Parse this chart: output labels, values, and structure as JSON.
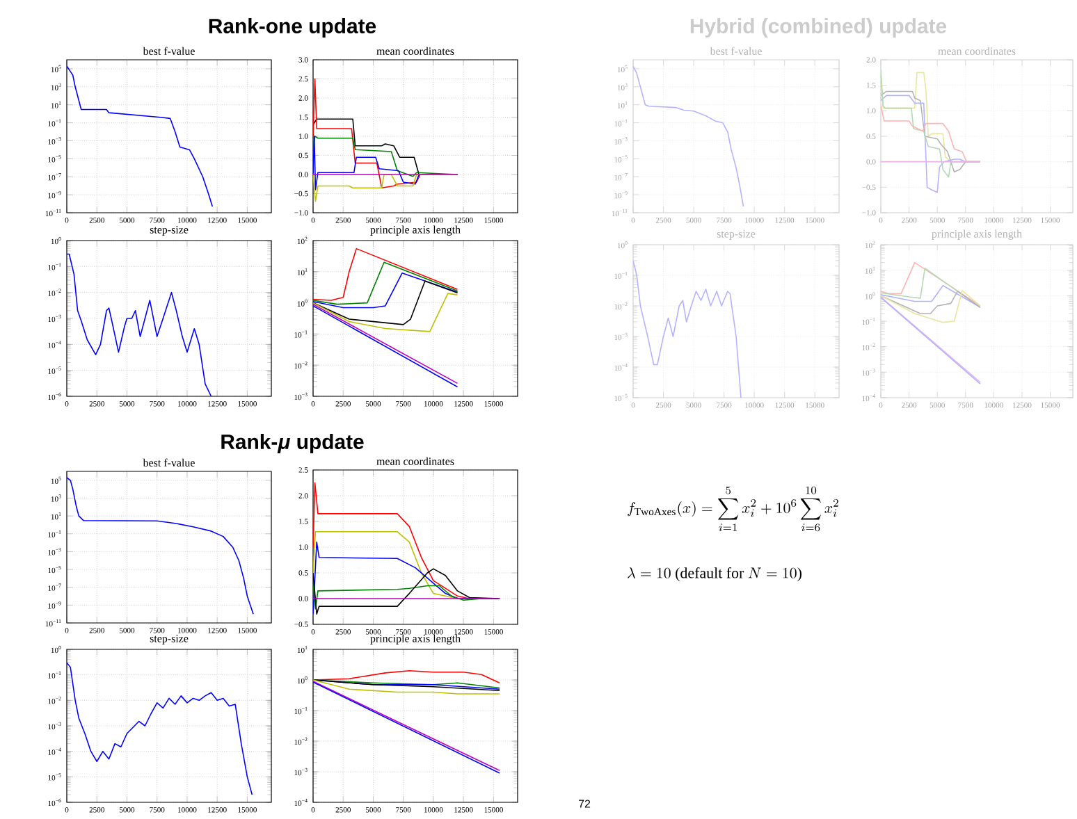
{
  "chart_data": [
    {
      "type": "other",
      "title": "Rank-one update"
    },
    {
      "type": "line",
      "title": "best f-value",
      "xlim": [
        0,
        17000
      ],
      "xticks": [
        0,
        2500,
        5000,
        7500,
        10000,
        12500,
        15000
      ],
      "ylim": [
        1e-11,
        1000000.0
      ],
      "log": "y",
      "grid": true,
      "yticks": [
        {
          "value": 1e-11,
          "label": "10$^{−11}$"
        },
        {
          "value": 1e-09,
          "label": "10$^{−9}$"
        },
        {
          "value": 1e-07,
          "label": "10$^{−7}$"
        },
        {
          "value": 1e-05,
          "label": "10$^{−5}$"
        },
        {
          "value": 0.001,
          "label": "10$^{−3}$"
        },
        {
          "value": 0.1,
          "label": "10$^{−1}$"
        },
        {
          "value": 10,
          "label": "10$^{1}$"
        },
        {
          "value": 1000,
          "label": "10$^{3}$"
        },
        {
          "value": 100000,
          "label": "10$^{5}$"
        }
      ],
      "series": [
        {
          "color": "#0000ff",
          "x": [
            0,
            300,
            500,
            700,
            1000,
            1200,
            3300,
            3500,
            7800,
            8600,
            9000,
            9400,
            10200,
            10600,
            11300,
            11800,
            12100
          ],
          "values": [
            200000.0,
            50000.0,
            20000.0,
            1000.0,
            30,
            3,
            3,
            1.3,
            0.4,
            0.3,
            0.01,
            0.0002,
            0.0001,
            1e-05,
            1e-07,
            1e-09,
            5e-11
          ]
        }
      ]
    },
    {
      "type": "line",
      "title": "mean coordinates",
      "xlim": [
        0,
        17000
      ],
      "xticks": [
        0,
        2500,
        5000,
        7500,
        10000,
        12500,
        15000
      ],
      "ylim": [
        -1,
        3
      ],
      "grid": true,
      "yticks": [
        {
          "value": -1,
          "label": "−1.0"
        },
        {
          "value": -0.5,
          "label": "−0.5"
        },
        {
          "value": 0,
          "label": "0.0"
        },
        {
          "value": 0.5,
          "label": "0.5"
        },
        {
          "value": 1,
          "label": "1.0"
        },
        {
          "value": 1.5,
          "label": "1.5"
        },
        {
          "value": 2,
          "label": "2.0"
        },
        {
          "value": 2.5,
          "label": "2.5"
        },
        {
          "value": 3,
          "label": "3.0"
        }
      ],
      "series": [
        {
          "color": "#000000",
          "x": [
            0,
            300,
            3300,
            3500,
            5700,
            6000,
            6700,
            7200,
            8400,
            8800,
            12000
          ],
          "values": [
            1.3,
            1.45,
            1.45,
            0.75,
            0.75,
            0.8,
            0.75,
            0.45,
            0.45,
            0,
            0
          ]
        },
        {
          "color": "#ff0000",
          "x": [
            0,
            150,
            300,
            3200,
            3500,
            5300,
            5700,
            6700,
            7000,
            8600,
            8900,
            12000
          ],
          "values": [
            1.0,
            2.5,
            1.2,
            1.2,
            0.3,
            0.3,
            -0.35,
            -0.3,
            -0.25,
            -0.2,
            0,
            0
          ]
        },
        {
          "color": "#008000",
          "x": [
            0,
            150,
            400,
            3300,
            3500,
            6500,
            7000,
            8300,
            8600,
            12000
          ],
          "values": [
            0.7,
            1.0,
            0.95,
            0.95,
            0.65,
            0.6,
            0.1,
            -0.05,
            0.05,
            0
          ]
        },
        {
          "color": "#0000ff",
          "x": [
            0,
            100,
            200,
            400,
            3400,
            3600,
            5200,
            5500,
            7100,
            7500,
            8500,
            8800,
            12000
          ],
          "values": [
            0,
            1.0,
            -0.4,
            0.05,
            0.05,
            0.45,
            0.45,
            0.15,
            0.1,
            -0.2,
            -0.25,
            0,
            0
          ]
        },
        {
          "color": "#bfbf00",
          "x": [
            0,
            200,
            400,
            3000,
            3300,
            5700,
            5900,
            6500,
            7000,
            8300,
            8600,
            12000
          ],
          "values": [
            0,
            -0.7,
            -0.3,
            -0.3,
            -0.35,
            -0.35,
            0,
            0,
            -0.3,
            -0.3,
            0,
            0
          ]
        },
        {
          "color": "#bf00bf",
          "x": [
            0,
            12000
          ],
          "values": [
            0,
            0
          ]
        }
      ]
    },
    {
      "type": "line",
      "title": "step-size",
      "xlim": [
        0,
        17000
      ],
      "xticks": [
        0,
        2500,
        5000,
        7500,
        10000,
        12500,
        15000
      ],
      "ylim": [
        1e-06,
        1
      ],
      "log": "y",
      "grid": true,
      "yticks": [
        {
          "value": 1e-06,
          "label": "10$^{−6}$"
        },
        {
          "value": 1e-05,
          "label": "10$^{−5}$"
        },
        {
          "value": 0.0001,
          "label": "10$^{−4}$"
        },
        {
          "value": 0.001,
          "label": "10$^{−3}$"
        },
        {
          "value": 0.01,
          "label": "10$^{−2}$"
        },
        {
          "value": 0.1,
          "label": "10$^{−1}$"
        },
        {
          "value": 1,
          "label": "10$^{0}$"
        }
      ],
      "series": [
        {
          "color": "#0000ff",
          "x": [
            0,
            200,
            600,
            900,
            1200,
            1700,
            2400,
            2800,
            3300,
            3500,
            3800,
            4300,
            4800,
            5000,
            5400,
            5700,
            6100,
            6500,
            6900,
            7500,
            8000,
            8700,
            9100,
            9600,
            10000,
            10600,
            11000,
            11500,
            12000
          ],
          "values": [
            0.3,
            0.3,
            0.05,
            0.002,
            0.0008,
            0.00015,
            4e-05,
            0.0001,
            0.002,
            0.0025,
            0.0006,
            5e-05,
            0.0005,
            0.001,
            0.001,
            0.002,
            0.0002,
            0.001,
            0.005,
            0.0002,
            0.001,
            0.01,
            0.002,
            0.0002,
            5e-05,
            0.0004,
            0.0001,
            3e-06,
            1e-06
          ]
        }
      ]
    },
    {
      "type": "line",
      "title": "principle axis length",
      "xlim": [
        0,
        17000
      ],
      "xticks": [
        0,
        2500,
        5000,
        7500,
        10000,
        12500,
        15000
      ],
      "ylim": [
        0.001,
        100
      ],
      "log": "y",
      "grid": true,
      "yticks": [
        {
          "value": 0.001,
          "label": "10$^{−3}$"
        },
        {
          "value": 0.01,
          "label": "10$^{−2}$"
        },
        {
          "value": 0.1,
          "label": "10$^{−1}$"
        },
        {
          "value": 1,
          "label": "10$^{0}$"
        },
        {
          "value": 10,
          "label": "10$^{1}$"
        },
        {
          "value": 100,
          "label": "10$^{2}$"
        }
      ],
      "series": [
        {
          "color": "#ff0000",
          "x": [
            0,
            1500,
            2500,
            3000,
            3600,
            12000
          ],
          "values": [
            1.3,
            1.2,
            1.5,
            10,
            55,
            2.7
          ]
        },
        {
          "color": "#008000",
          "x": [
            0,
            2000,
            4500,
            5900,
            12000
          ],
          "values": [
            1.2,
            0.9,
            1.0,
            20,
            2.4
          ]
        },
        {
          "color": "#0000ff",
          "x": [
            0,
            2500,
            5000,
            6000,
            7400,
            12000
          ],
          "values": [
            1.1,
            0.7,
            0.7,
            0.8,
            9,
            2.2
          ]
        },
        {
          "color": "#000000",
          "x": [
            0,
            3000,
            7500,
            8100,
            9300,
            12000
          ],
          "values": [
            1,
            0.3,
            0.2,
            0.3,
            5,
            2.1
          ]
        },
        {
          "color": "#bfbf00",
          "x": [
            0,
            3000,
            6000,
            9700,
            11200,
            12000
          ],
          "values": [
            1,
            0.25,
            0.15,
            0.12,
            2,
            1.8
          ]
        },
        {
          "color": "#bf00bf",
          "x": [
            0,
            12000
          ],
          "values": [
            0.9,
            0.0026
          ]
        },
        {
          "color": "#0000ff",
          "x": [
            0,
            12000
          ],
          "values": [
            0.8,
            0.002
          ]
        }
      ]
    },
    {
      "type": "other",
      "title": "Hybrid (combined) update"
    },
    {
      "type": "line",
      "title": "best f-value",
      "xlim": [
        0,
        17000
      ],
      "xticks": [
        0,
        2500,
        5000,
        7500,
        10000,
        12500,
        15000
      ],
      "ylim": [
        1e-11,
        1000000.0
      ],
      "log": "y",
      "grid": true,
      "yticks": [
        {
          "value": 1e-11,
          "label": "10$^{−11}$"
        },
        {
          "value": 1e-09,
          "label": "10$^{−9}$"
        },
        {
          "value": 1e-07,
          "label": "10$^{−7}$"
        },
        {
          "value": 1e-05,
          "label": "10$^{−5}$"
        },
        {
          "value": 0.001,
          "label": "10$^{−3}$"
        },
        {
          "value": 0.1,
          "label": "10$^{−1}$"
        },
        {
          "value": 10,
          "label": "10$^{1}$"
        },
        {
          "value": 1000,
          "label": "10$^{3}$"
        },
        {
          "value": 100000,
          "label": "10$^{5}$"
        }
      ],
      "series": [
        {
          "color": "#b3b3ff",
          "x": [
            0,
            300,
            700,
            1000,
            1300,
            3500,
            4200,
            5000,
            6000,
            6800,
            7400,
            7800,
            8100,
            8500,
            8800,
            9100
          ],
          "values": [
            200000.0,
            30000.0,
            300,
            10,
            7,
            5,
            2.5,
            2,
            0.6,
            0.15,
            0.1,
            0.01,
            0.0001,
            1e-06,
            1e-08,
            5e-11
          ]
        }
      ]
    },
    {
      "type": "line",
      "title": "mean coordinates",
      "xlim": [
        0,
        17000
      ],
      "xticks": [
        0,
        2500,
        5000,
        7500,
        10000,
        12500,
        15000
      ],
      "ylim": [
        -1,
        2
      ],
      "grid": true,
      "yticks": [
        {
          "value": -1,
          "label": "−1.0"
        },
        {
          "value": -0.5,
          "label": "−0.5"
        },
        {
          "value": 0,
          "label": "0.0"
        },
        {
          "value": 0.5,
          "label": "0.5"
        },
        {
          "value": 1,
          "label": "1.0"
        },
        {
          "value": 1.5,
          "label": "1.5"
        },
        {
          "value": 2,
          "label": "2.0"
        }
      ],
      "series": [
        {
          "color": "#e6e6a0",
          "x": [
            0,
            200,
            3000,
            3200,
            3800,
            4000,
            4200,
            4500,
            5500,
            5700,
            6200,
            8800
          ],
          "values": [
            1.7,
            1.05,
            1.05,
            1.75,
            1.75,
            1.4,
            0.5,
            0.55,
            0.55,
            0.1,
            0,
            0
          ]
        },
        {
          "color": "#b3b3b3",
          "x": [
            0,
            500,
            2800,
            3000,
            3500,
            3900,
            5000,
            5300,
            5900,
            6500,
            7000,
            7500,
            8800
          ],
          "values": [
            1.3,
            1.38,
            1.38,
            1.25,
            1.2,
            0.5,
            0.45,
            0.35,
            0.2,
            -0.2,
            -0.15,
            0,
            0
          ]
        },
        {
          "color": "#b3b3ff",
          "x": [
            0,
            500,
            2500,
            3000,
            3800,
            4100,
            4500,
            5000,
            5200,
            5600,
            6500,
            7000,
            7500,
            8800
          ],
          "values": [
            1.2,
            1.3,
            1.3,
            1.15,
            1.15,
            -0.5,
            -0.55,
            -0.6,
            -0.1,
            0,
            0.05,
            0.05,
            0,
            0
          ]
        },
        {
          "color": "#b3d9b3",
          "x": [
            0,
            200,
            400,
            2700,
            2900,
            3800,
            4200,
            5200,
            5500,
            6000,
            6200,
            8800
          ],
          "values": [
            1.8,
            1.1,
            1.05,
            1.05,
            0.65,
            0.6,
            0.3,
            0.25,
            -0.15,
            -0.3,
            0,
            0
          ]
        },
        {
          "color": "#ffb3b3",
          "x": [
            0,
            300,
            2500,
            2800,
            3700,
            4000,
            5500,
            6000,
            6500,
            7200,
            7600,
            8800
          ],
          "values": [
            1.1,
            0.8,
            0.8,
            0.7,
            0.6,
            0.75,
            0.75,
            0.6,
            0.25,
            0.2,
            0,
            0
          ]
        },
        {
          "color": "#e6b3e6",
          "x": [
            0,
            8800
          ],
          "values": [
            0,
            0
          ]
        }
      ]
    },
    {
      "type": "line",
      "title": "step-size",
      "xlim": [
        0,
        17000
      ],
      "xticks": [
        0,
        2500,
        5000,
        7500,
        10000,
        12500,
        15000
      ],
      "ylim": [
        1e-05,
        1
      ],
      "log": "y",
      "grid": true,
      "yticks": [
        {
          "value": 1e-05,
          "label": "10$^{−5}$"
        },
        {
          "value": 0.0001,
          "label": "10$^{−4}$"
        },
        {
          "value": 0.001,
          "label": "10$^{−3}$"
        },
        {
          "value": 0.01,
          "label": "10$^{−2}$"
        },
        {
          "value": 0.1,
          "label": "10$^{−1}$"
        },
        {
          "value": 1,
          "label": "10$^{0}$"
        }
      ],
      "series": [
        {
          "color": "#b3b3ff",
          "x": [
            0,
            300,
            600,
            1200,
            1700,
            2000,
            2500,
            2900,
            3300,
            3800,
            4100,
            4400,
            4800,
            5200,
            5600,
            6000,
            6400,
            6900,
            7300,
            7800,
            8000,
            8500,
            8900
          ],
          "values": [
            0.3,
            0.1,
            0.01,
            0.001,
            0.00012,
            0.00012,
            0.001,
            0.004,
            0.001,
            0.01,
            0.015,
            0.003,
            0.01,
            0.03,
            0.015,
            0.035,
            0.01,
            0.03,
            0.01,
            0.03,
            0.025,
            0.001,
            1e-05
          ]
        }
      ]
    },
    {
      "type": "line",
      "title": "principle axis length",
      "xlim": [
        0,
        17000
      ],
      "xticks": [
        0,
        2500,
        5000,
        7500,
        10000,
        12500,
        15000
      ],
      "ylim": [
        0.0001,
        100
      ],
      "log": "y",
      "grid": true,
      "yticks": [
        {
          "value": 0.0001,
          "label": "10$^{−4}$"
        },
        {
          "value": 0.001,
          "label": "10$^{−3}$"
        },
        {
          "value": 0.01,
          "label": "10$^{−2}$"
        },
        {
          "value": 0.1,
          "label": "10$^{−1}$"
        },
        {
          "value": 1,
          "label": "10$^{0}$"
        },
        {
          "value": 10,
          "label": "10$^{1}$"
        },
        {
          "value": 100,
          "label": "10$^{2}$"
        }
      ],
      "series": [
        {
          "color": "#ffb3b3",
          "x": [
            0,
            700,
            1800,
            3000,
            8800
          ],
          "values": [
            1.5,
            1.2,
            1.2,
            20,
            0.4
          ]
        },
        {
          "color": "#b3d9b3",
          "x": [
            0,
            2500,
            3500,
            3900,
            8800
          ],
          "values": [
            1.3,
            0.9,
            0.8,
            12,
            0.35
          ]
        },
        {
          "color": "#b3b3ff",
          "x": [
            0,
            3000,
            4500,
            5500,
            8800
          ],
          "values": [
            1.1,
            0.6,
            0.6,
            2.5,
            0.35
          ]
        },
        {
          "color": "#b3b3b3",
          "x": [
            0,
            3500,
            4400,
            5000,
            6200,
            6800,
            8800
          ],
          "values": [
            1,
            0.2,
            0.2,
            0.4,
            0.5,
            1.5,
            0.35
          ]
        },
        {
          "color": "#e6e6a0",
          "x": [
            0,
            3000,
            5500,
            6500,
            7200,
            8800
          ],
          "values": [
            1,
            0.2,
            0.09,
            0.1,
            1.6,
            0.4
          ]
        },
        {
          "color": "#e6b3e6",
          "x": [
            0,
            8800
          ],
          "values": [
            0.9,
            0.0004
          ]
        },
        {
          "color": "#b3b3ff",
          "x": [
            0,
            8800
          ],
          "values": [
            0.85,
            0.00035
          ]
        }
      ]
    },
    {
      "type": "other",
      "title": "Rank-*μ* update"
    },
    {
      "type": "line",
      "title": "best f-value",
      "xlim": [
        0,
        17000
      ],
      "xticks": [
        0,
        2500,
        5000,
        7500,
        10000,
        12500,
        15000
      ],
      "ylim": [
        1e-11,
        1000000.0
      ],
      "log": "y",
      "grid": true,
      "yticks": [
        {
          "value": 1e-11,
          "label": "10$^{−11}$"
        },
        {
          "value": 1e-09,
          "label": "10$^{−9}$"
        },
        {
          "value": 1e-07,
          "label": "10$^{−7}$"
        },
        {
          "value": 1e-05,
          "label": "10$^{−5}$"
        },
        {
          "value": 0.001,
          "label": "10$^{−3}$"
        },
        {
          "value": 0.1,
          "label": "10$^{−1}$"
        },
        {
          "value": 10,
          "label": "10$^{1}$"
        },
        {
          "value": 1000,
          "label": "10$^{3}$"
        },
        {
          "value": 100000,
          "label": "10$^{5}$"
        }
      ],
      "series": [
        {
          "color": "#0000ff",
          "x": [
            0,
            300,
            500,
            800,
            1000,
            1400,
            7500,
            9000,
            10500,
            12000,
            13000,
            13800,
            14300,
            14700,
            15000,
            15500
          ],
          "values": [
            200000.0,
            100000.0,
            10000.0,
            100,
            10,
            3,
            2.8,
            1.5,
            0.6,
            0.2,
            0.05,
            0.003,
            0.0001,
            1e-06,
            1e-08,
            1e-10
          ]
        }
      ]
    },
    {
      "type": "line",
      "title": "mean coordinates",
      "xlim": [
        0,
        17000
      ],
      "xticks": [
        0,
        2500,
        5000,
        7500,
        10000,
        12500,
        15000
      ],
      "ylim": [
        -0.5,
        2.5
      ],
      "grid": true,
      "yticks": [
        {
          "value": -0.5,
          "label": "−0.5"
        },
        {
          "value": 0,
          "label": "0.0"
        },
        {
          "value": 0.5,
          "label": "0.5"
        },
        {
          "value": 1,
          "label": "1.0"
        },
        {
          "value": 1.5,
          "label": "1.5"
        },
        {
          "value": 2,
          "label": "2.0"
        },
        {
          "value": 2.5,
          "label": "2.5"
        }
      ],
      "series": [
        {
          "color": "#ff0000",
          "x": [
            0,
            150,
            400,
            7000,
            8000,
            9000,
            10000,
            11000,
            12000,
            13000,
            15500
          ],
          "values": [
            1.0,
            2.25,
            1.65,
            1.65,
            1.4,
            0.8,
            0.35,
            0.2,
            0.05,
            0,
            0
          ]
        },
        {
          "color": "#bfbf00",
          "x": [
            0,
            200,
            7000,
            8000,
            9000,
            10000,
            11000,
            12000,
            15500
          ],
          "values": [
            0.5,
            1.3,
            1.3,
            1.1,
            0.5,
            0.1,
            0.05,
            0,
            0
          ]
        },
        {
          "color": "#0000ff",
          "x": [
            0,
            300,
            500,
            7000,
            8500,
            10000,
            11000,
            12000,
            15500
          ],
          "values": [
            -0.3,
            1.1,
            0.8,
            0.78,
            0.6,
            0.3,
            0.1,
            0,
            0
          ]
        },
        {
          "color": "#008000",
          "x": [
            0,
            200,
            400,
            7000,
            8000,
            9500,
            10500,
            11500,
            12500,
            14000,
            15500
          ],
          "values": [
            0.3,
            -0.2,
            0.15,
            0.18,
            0.2,
            0.25,
            0.25,
            0.05,
            -0.03,
            0,
            0
          ]
        },
        {
          "color": "#000000",
          "x": [
            0,
            300,
            500,
            7000,
            8000,
            9500,
            10000,
            11000,
            12000,
            13000,
            15500
          ],
          "values": [
            0.5,
            -0.3,
            -0.15,
            -0.15,
            0.1,
            0.5,
            0.58,
            0.45,
            0.15,
            0.02,
            0
          ]
        },
        {
          "color": "#bf00bf",
          "x": [
            0,
            15500
          ],
          "values": [
            0,
            0
          ]
        }
      ]
    },
    {
      "type": "line",
      "title": "step-size",
      "xlim": [
        0,
        17000
      ],
      "xticks": [
        0,
        2500,
        5000,
        7500,
        10000,
        12500,
        15000
      ],
      "ylim": [
        1e-06,
        1
      ],
      "log": "y",
      "grid": true,
      "yticks": [
        {
          "value": 1e-06,
          "label": "10$^{−6}$"
        },
        {
          "value": 1e-05,
          "label": "10$^{−5}$"
        },
        {
          "value": 0.0001,
          "label": "10$^{−4}$"
        },
        {
          "value": 0.001,
          "label": "10$^{−3}$"
        },
        {
          "value": 0.01,
          "label": "10$^{−2}$"
        },
        {
          "value": 0.1,
          "label": "10$^{−1}$"
        },
        {
          "value": 1,
          "label": "10$^{0}$"
        }
      ],
      "series": [
        {
          "color": "#0000ff",
          "x": [
            0,
            300,
            700,
            1000,
            1500,
            2000,
            2500,
            3000,
            3500,
            4000,
            4500,
            5000,
            6000,
            6500,
            7000,
            7500,
            8000,
            8500,
            9000,
            9500,
            10000,
            10500,
            11000,
            11500,
            12000,
            12500,
            13000,
            13500,
            14000,
            14500,
            15000,
            15400
          ],
          "values": [
            0.3,
            0.2,
            0.01,
            0.002,
            0.0005,
            0.0001,
            4e-05,
            0.0001,
            5e-05,
            0.0002,
            0.00015,
            0.0005,
            0.0015,
            0.001,
            0.003,
            0.008,
            0.005,
            0.012,
            0.007,
            0.015,
            0.008,
            0.012,
            0.01,
            0.015,
            0.02,
            0.01,
            0.012,
            0.006,
            0.007,
            0.0002,
            1e-05,
            2e-06
          ]
        }
      ]
    },
    {
      "type": "line",
      "title": "principle axis length",
      "xlim": [
        0,
        17000
      ],
      "xticks": [
        0,
        2500,
        5000,
        7500,
        10000,
        12500,
        15000
      ],
      "ylim": [
        0.0001,
        10
      ],
      "log": "y",
      "grid": true,
      "yticks": [
        {
          "value": 0.0001,
          "label": "10$^{−4}$"
        },
        {
          "value": 0.001,
          "label": "10$^{−3}$"
        },
        {
          "value": 0.01,
          "label": "10$^{−2}$"
        },
        {
          "value": 0.1,
          "label": "10$^{−1}$"
        },
        {
          "value": 1,
          "label": "10$^{0}$"
        },
        {
          "value": 10,
          "label": "10$^{1}$"
        }
      ],
      "series": [
        {
          "color": "#ff0000",
          "x": [
            0,
            3000,
            6000,
            8000,
            10000,
            12500,
            14000,
            15500
          ],
          "values": [
            1,
            1.1,
            1.7,
            2,
            1.8,
            1.8,
            1.5,
            0.8
          ]
        },
        {
          "color": "#008000",
          "x": [
            0,
            5000,
            10000,
            12000,
            15500
          ],
          "values": [
            1,
            0.8,
            0.7,
            0.8,
            0.55
          ]
        },
        {
          "color": "#0000ff",
          "x": [
            0,
            5000,
            10000,
            15500
          ],
          "values": [
            1,
            0.7,
            0.7,
            0.5
          ]
        },
        {
          "color": "#000000",
          "x": [
            0,
            5000,
            10000,
            15500
          ],
          "values": [
            1,
            0.7,
            0.6,
            0.45
          ]
        },
        {
          "color": "#bfbf00",
          "x": [
            0,
            3000,
            7000,
            10000,
            12000,
            15500
          ],
          "values": [
            1,
            0.5,
            0.4,
            0.4,
            0.35,
            0.35
          ]
        },
        {
          "color": "#bf00bf",
          "x": [
            0,
            15500
          ],
          "values": [
            0.9,
            0.0011
          ]
        },
        {
          "color": "#0000ff",
          "x": [
            0,
            15500
          ],
          "values": [
            0.85,
            0.0009
          ]
        }
      ]
    },
    {
      "type": "other",
      "annotations": [
        "f_{\\mathrm{TwoAxes}}(x) = \\sum_{i=1}^{5} x_i^2 + 10^6 \\sum_{i=6}^{10} x_i^2",
        "\\lambda = 10 \\text{ (default for } N = 10\\text{)}"
      ]
    },
    {
      "type": "other",
      "annotations": [
        "72"
      ]
    }
  ]
}
